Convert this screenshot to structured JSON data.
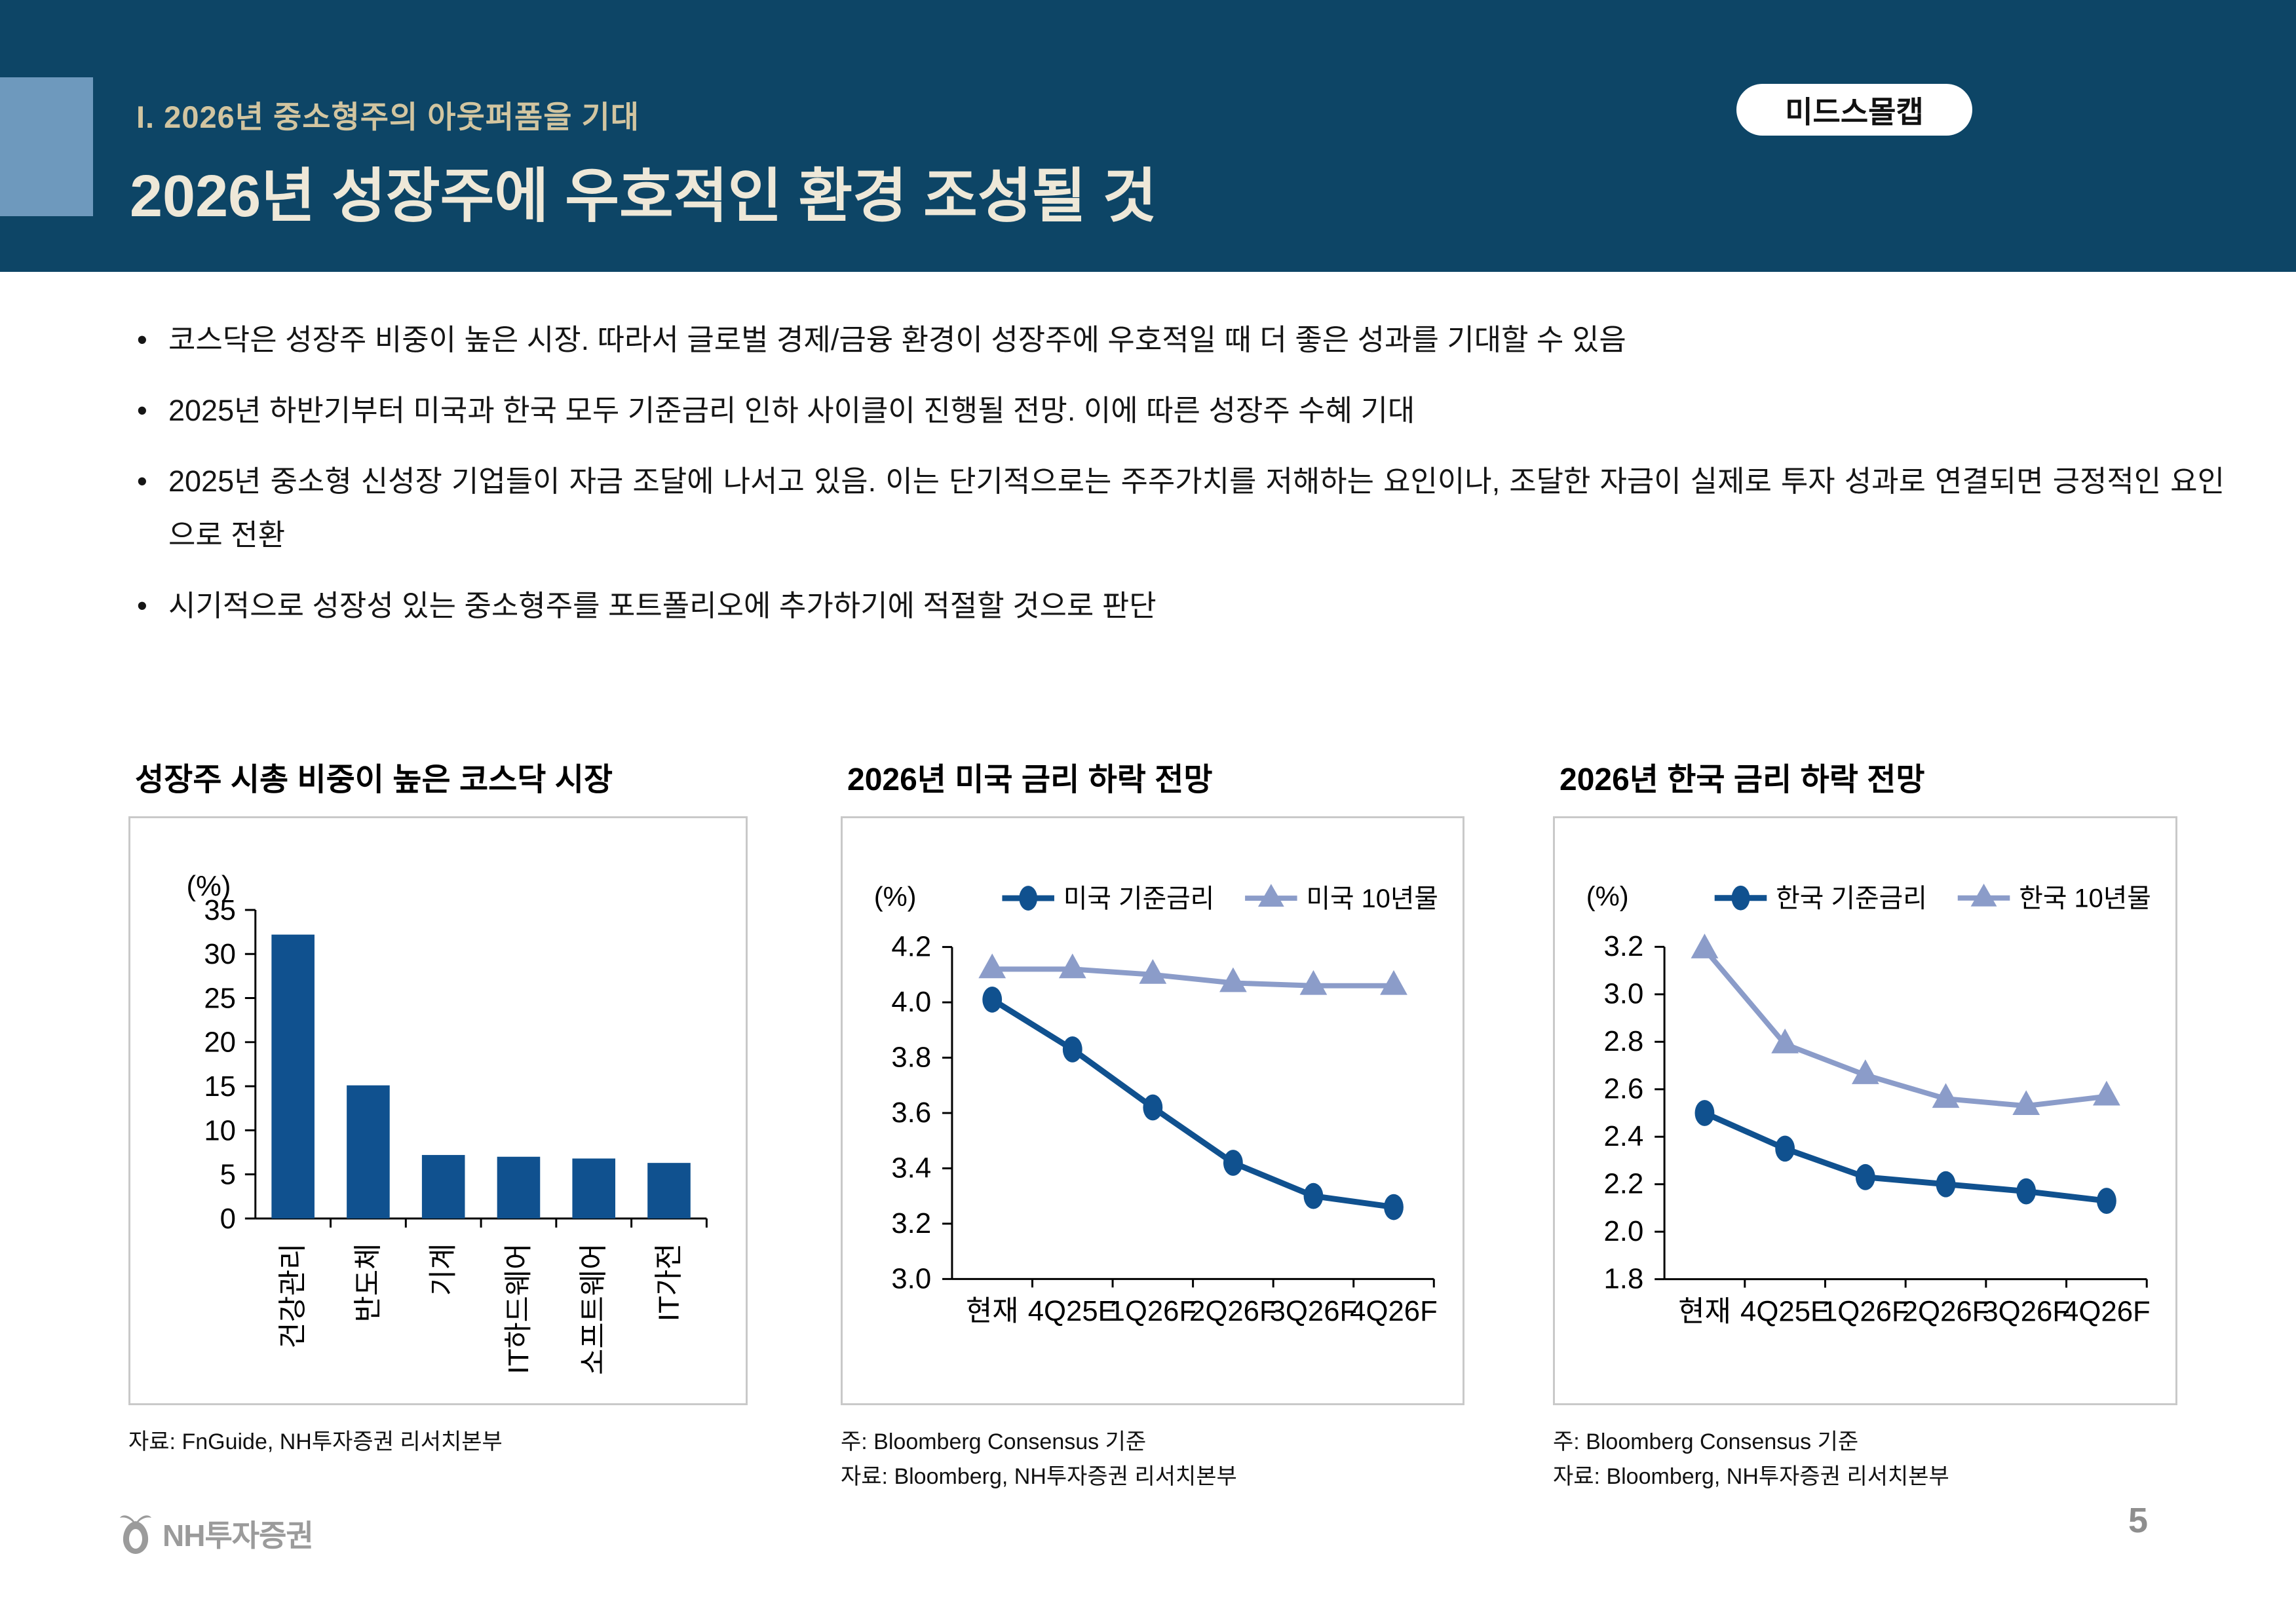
{
  "header": {
    "eyebrow": "I. 2026년 중소형주의 아웃퍼폼을 기대",
    "title": "2026년 성장주에 우호적인 환경 조성될 것",
    "badge": "미드스몰캡"
  },
  "colors": {
    "header_band": "#0d4566",
    "accent_square": "#6e99bd",
    "eyebrow_text": "#d2c5a0",
    "title_text": "#eee8d8",
    "dark_blue_series": "#10518f",
    "light_blue_series": "#8b9cc9",
    "chart_border": "#c9c9c9",
    "footer_gray": "#9b9b9b"
  },
  "bullets": [
    "코스닥은 성장주 비중이 높은 시장. 따라서 글로벌 경제/금융 환경이 성장주에 우호적일 때 더 좋은 성과를 기대할 수 있음",
    "2025년 하반기부터 미국과 한국 모두 기준금리 인하 사이클이 진행될 전망. 이에 따른 성장주 수혜 기대",
    "2025년 중소형 신성장 기업들이 자금 조달에 나서고 있음. 이는 단기적으로는 주주가치를 저해하는 요인이나, 조달한 자금이 실제로 투자 성과로 연결되면 긍정적인 요인으로 전환",
    "시기적으로 성장성 있는 중소형주를 포트폴리오에 추가하기에 적절할 것으로 판단"
  ],
  "chart_data": [
    {
      "type": "bar",
      "title": "성장주 시총 비중이 높은 코스닥 시장",
      "unit": "(%)",
      "categories": [
        "건강관리",
        "반도체",
        "기계",
        "IT하드웨어",
        "소프트웨어",
        "IT가전"
      ],
      "values": [
        32.2,
        15.1,
        7.2,
        7.0,
        6.8,
        6.3
      ],
      "ylim": [
        0,
        35
      ],
      "ytick_step": 5,
      "bar_color": "#10518f",
      "grid": false,
      "notes": [
        "자료: FnGuide, NH투자증권 리서치본부"
      ]
    },
    {
      "type": "line",
      "title": "2026년 미국 금리 하락 전망",
      "unit": "(%)",
      "categories": [
        "현재",
        "4Q25E",
        "1Q26F",
        "2Q26F",
        "3Q26F",
        "4Q26F"
      ],
      "series": [
        {
          "name": "미국 기준금리",
          "marker": "circle",
          "color": "#10518f",
          "values": [
            4.01,
            3.83,
            3.62,
            3.42,
            3.3,
            3.26
          ]
        },
        {
          "name": "미국 10년물",
          "marker": "triangle",
          "color": "#8b9cc9",
          "values": [
            4.12,
            4.12,
            4.1,
            4.07,
            4.06,
            4.06
          ]
        }
      ],
      "ylim": [
        3.0,
        4.2
      ],
      "ytick_step": 0.2,
      "grid": false,
      "legend_position": "top",
      "notes": [
        "주: Bloomberg Consensus 기준",
        "자료: Bloomberg, NH투자증권 리서치본부"
      ]
    },
    {
      "type": "line",
      "title": "2026년 한국 금리 하락 전망",
      "unit": "(%)",
      "categories": [
        "현재",
        "4Q25E",
        "1Q26F",
        "2Q26F",
        "3Q26F",
        "4Q26F"
      ],
      "series": [
        {
          "name": "한국 기준금리",
          "marker": "circle",
          "color": "#10518f",
          "values": [
            2.5,
            2.35,
            2.23,
            2.2,
            2.17,
            2.13
          ]
        },
        {
          "name": "한국 10년물",
          "marker": "triangle",
          "color": "#8b9cc9",
          "values": [
            3.19,
            2.79,
            2.66,
            2.56,
            2.53,
            2.57
          ]
        }
      ],
      "ylim": [
        1.8,
        3.2
      ],
      "ytick_step": 0.2,
      "grid": false,
      "legend_position": "top",
      "notes": [
        "주: Bloomberg Consensus 기준",
        "자료: Bloomberg, NH투자증권 리서치본부"
      ]
    }
  ],
  "footer": {
    "logo_text": "NH투자증권",
    "page_number": "5"
  }
}
